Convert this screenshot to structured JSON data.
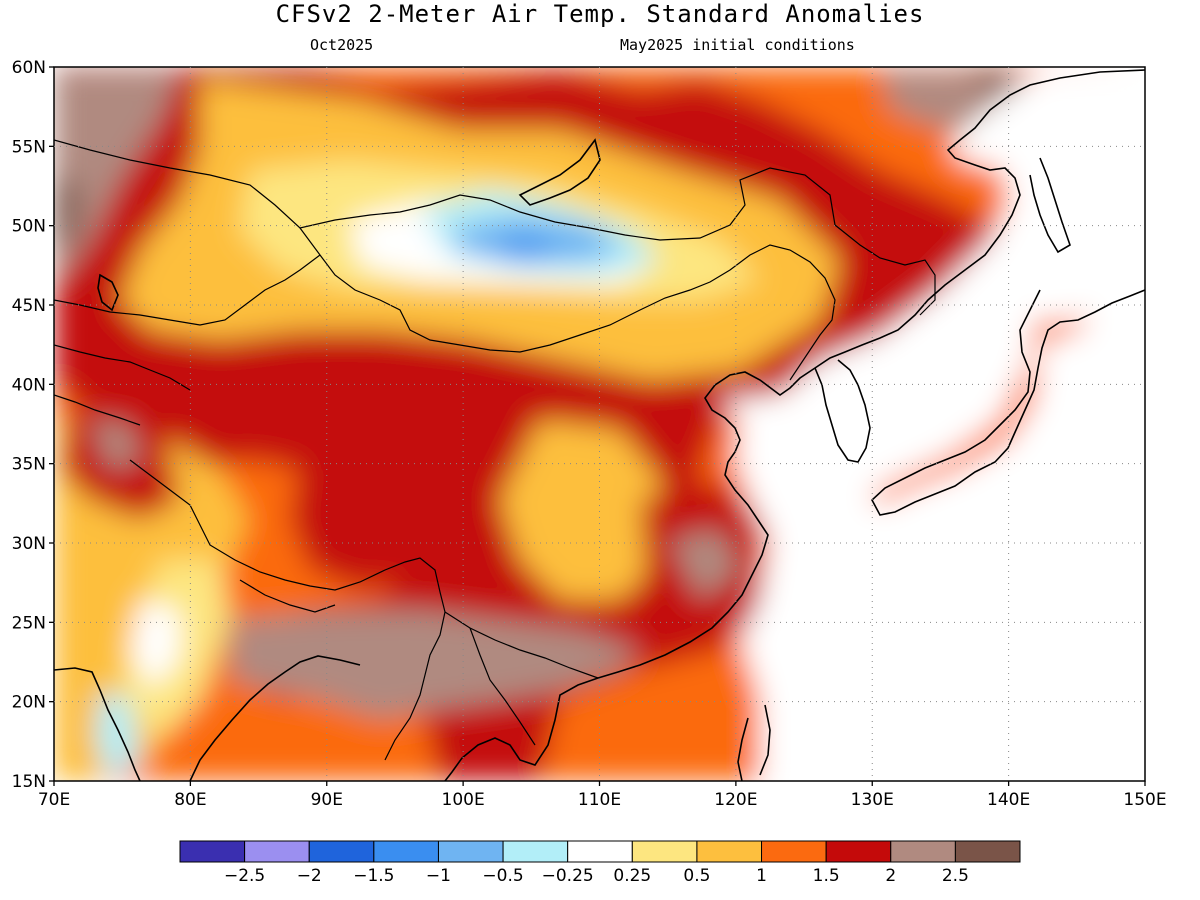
{
  "title": "CFSv2 2-Meter Air Temp. Standard Anomalies",
  "subtitle_left": "Oct2025",
  "subtitle_right": "May2025 initial conditions",
  "map": {
    "lon_range": [
      70,
      150
    ],
    "lat_range": [
      15,
      60
    ],
    "x_ticks": [
      "70E",
      "80E",
      "90E",
      "100E",
      "110E",
      "120E",
      "130E",
      "140E",
      "150E"
    ],
    "y_ticks": [
      "15N",
      "20N",
      "25N",
      "30N",
      "35N",
      "40N",
      "45N",
      "50N",
      "55N",
      "60N"
    ],
    "grid": "dotted"
  },
  "colorbar": {
    "colors": [
      "#3a2fb0",
      "#9b8ff0",
      "#1f64dc",
      "#3a8ef0",
      "#6fb4f2",
      "#b2eef8",
      "#ffffff",
      "#fde680",
      "#fdbf3e",
      "#fb6a10",
      "#c40a0a",
      "#b08a80",
      "#7a5448"
    ],
    "labels": [
      "−2.5",
      "−2",
      "−1.5",
      "−1",
      "−0.5",
      "−0.25",
      "0.25",
      "0.5",
      "1",
      "1.5",
      "2",
      "2.5"
    ]
  }
}
